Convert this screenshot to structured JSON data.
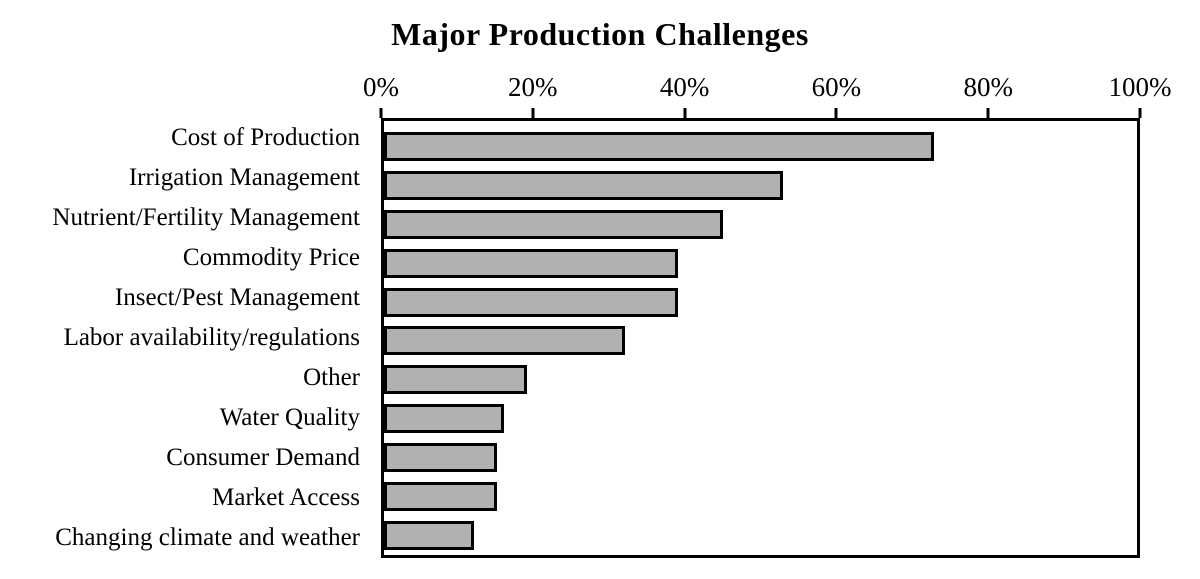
{
  "chart_data": {
    "type": "bar",
    "orientation": "horizontal",
    "title": "Major Production Challenges",
    "categories": [
      "Cost of Production",
      "Irrigation Management",
      "Nutrient/Fertility Management",
      "Commodity Price",
      "Insect/Pest Management",
      "Labor availability/regulations",
      "Other",
      "Water Quality",
      "Consumer Demand",
      "Market Access",
      "Changing climate and weather"
    ],
    "values": [
      73,
      53,
      45,
      39,
      39,
      32,
      19,
      16,
      15,
      15,
      12
    ],
    "value_unit": "%",
    "x_axis": {
      "position": "top",
      "tick_labels": [
        "0%",
        "20%",
        "40%",
        "60%",
        "80%",
        "100%"
      ],
      "tick_values": [
        0,
        20,
        40,
        60,
        80,
        100
      ],
      "range": [
        0,
        100
      ]
    },
    "ylabel": "",
    "xlabel": "",
    "legend": "none",
    "grid": "off",
    "colors": {
      "bar_fill": "#b1b1b1",
      "bar_border": "#000000",
      "axis": "#000000",
      "background": "#ffffff",
      "text": "#000000"
    }
  }
}
